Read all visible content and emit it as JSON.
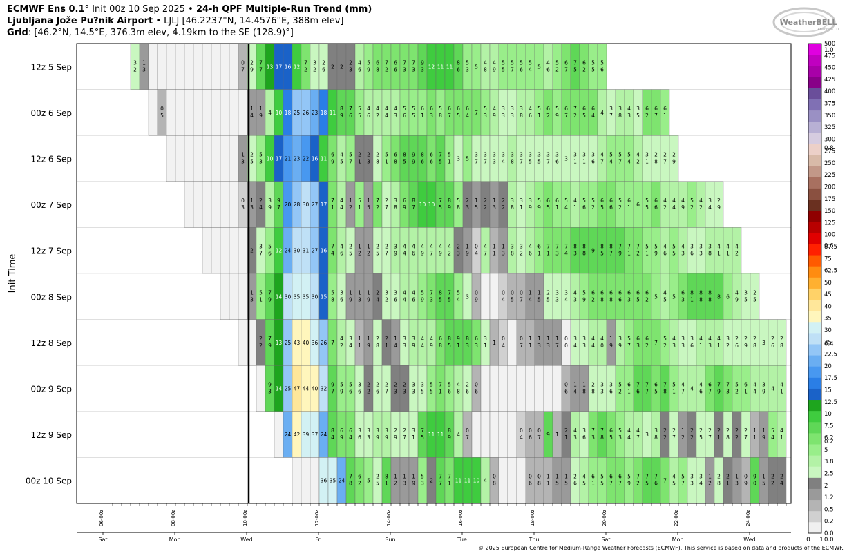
{
  "header": {
    "title_model": "ECMWF Ens 0.1",
    "title_deg": "°",
    "title_init": "Init 00z 10 Sep 2025",
    "title_sep": "•",
    "title_product": "24-h QPF Multiple-Run Trend (mm)",
    "location_name": "Ljubljana Jože Pu?nik Airport",
    "location_sep": "•",
    "location_detail": "LJLJ [46.2237°N, 14.4576°E, 388m elev]",
    "grid_label": "Grid",
    "grid_detail": ": [46.2°N, 14.5°E, 376.3m elev, 4.19km to the SE (128.9)°]"
  },
  "logo": {
    "text": "WeatherBELL",
    "subtext": "Analytics LLC"
  },
  "footer": {
    "copyright": "© 2025 European Centre for Medium-Range Weather Forecasts (ECMWF). This service is based on data and products of the ECMWF."
  },
  "colors": {
    "gray_light": "#f2f2f2",
    "now_line": "#000000"
  },
  "chart_data": {
    "type": "heatmap",
    "ylabel": "Init Time",
    "init_times": [
      "12z 5 Sep",
      "00z 6 Sep",
      "12z 6 Sep",
      "00z 7 Sep",
      "12z 7 Sep",
      "00z 8 Sep",
      "12z 8 Sep",
      "00z 9 Sep",
      "12z 9 Sep",
      "00z 10 Sep"
    ],
    "x_ticks": [
      "06-00z",
      "08-00z",
      "10-00z",
      "12-00z",
      "14-00z",
      "16-00z",
      "18-00z",
      "20-00z",
      "22-00z",
      "24-00z"
    ],
    "day_labels": [
      "Sat",
      "Mon",
      "Wed",
      "Fri",
      "Sun",
      "Tue",
      "Thu",
      "Sat",
      "Mon",
      "Wed"
    ],
    "valid_start": "05-Sep 18z",
    "step_hours": 6,
    "now_line_valid": "10-00z",
    "rows": [
      {
        "init": "12z 5 Sep",
        "start": 2,
        "values": [
          "3\n2",
          "1\n3",
          "",
          "",
          "",
          "",
          "",
          "",
          "",
          "",
          "",
          "",
          "0\n7",
          "2\n9",
          "7\n7",
          "13",
          "17",
          "16",
          "12",
          "7\n2",
          "3\n2",
          "2\n6",
          "2",
          "2",
          "2\n3",
          "4\n6",
          "5\n9",
          "6\n8",
          "7\n2",
          "6\n6",
          "7\n3",
          "7\n3",
          "9\n3",
          "12",
          "11",
          "11",
          "8\n6",
          "5\n3",
          "5",
          "4\n8",
          "4\n9",
          "5\n5",
          "5\n7",
          "5\n6",
          "5\n4",
          "5",
          "4\n6",
          "5\n2",
          "6\n7",
          "7\n5",
          "6\n2",
          "5\n5",
          "5\n6"
        ]
      },
      {
        "init": "00z 6 Sep",
        "start": 4,
        "values": [
          "",
          "0\n5",
          "",
          "",
          "",
          "",
          "",
          "",
          "",
          "",
          "",
          "1\n4",
          "1\n9",
          "4",
          "10",
          "18",
          "25",
          "26",
          "23",
          "18",
          "11",
          "8\n9",
          "7\n6",
          "5\n5",
          "4\n6",
          "4\n2",
          "4\n4",
          "4\n3",
          "5\n6",
          "5\n5",
          "6\n1",
          "6\n3",
          "5\n8",
          "6\n7",
          "6\n5",
          "6\n4",
          "7",
          "5\n3",
          "4\n9",
          "3\n3",
          "3\n3",
          "3\n8",
          "4\n6",
          "5\n1",
          "6\n2",
          "5\n9",
          "6\n7",
          "7\n2",
          "6\n5",
          "6\n4",
          "4",
          "3\n7",
          "3\n8",
          "4\n3",
          "3\n5",
          "6\n2",
          "6\n7",
          "6\n1"
        ]
      },
      {
        "init": "12z 6 Sep",
        "start": 6,
        "values": [
          "",
          "",
          "",
          "",
          "",
          "",
          "",
          "",
          "1\n3",
          "2\n5",
          "5\n3",
          "10",
          "17",
          "21",
          "23",
          "22",
          "16",
          "11",
          "6\n9",
          "4\n5",
          "5\n7",
          "2\n1",
          "2\n3",
          "2\n8",
          "5\n1",
          "6\n8",
          "8\n5",
          "9\n9",
          "8\n6",
          "6\n6",
          "7\n5",
          "5\n1",
          "3",
          "5",
          "3\n7",
          "3\n7",
          "3\n3",
          "3\n4",
          "3\n8",
          "3\n7",
          "3\n5",
          "3\n5",
          "3\n7",
          "3\n6",
          "3",
          "3\n1",
          "3\n1",
          "3\n6",
          "4\n7",
          "5\n4",
          "5\n7",
          "5\n4",
          "4\n2",
          "3\n1",
          "2\n8",
          "2\n7",
          "2\n9"
        ]
      },
      {
        "init": "00z 7 Sep",
        "start": 8,
        "values": [
          "",
          "",
          "",
          "",
          "",
          "",
          "0\n3",
          "1\n3",
          "2\n4",
          "3\n9",
          "9\n7",
          "20",
          "28",
          "30",
          "27",
          "17",
          "7\n1",
          "4\n4",
          "1\n2",
          "5\n1",
          "1\n5",
          "7\n2",
          "2\n7",
          "3\n8",
          "6\n9",
          "8\n7",
          "10",
          "10",
          "7\n5",
          "8\n9",
          "5\n8",
          "2\n3",
          "1\n5",
          "2\n2",
          "1\n3",
          "2\n2",
          "3\n8",
          "3\n1",
          "3\n9",
          "5\n9",
          "6\n5",
          "6\n1",
          "5\n4",
          "4\n1",
          "5\n6",
          "5\n2",
          "6\n5",
          "6\n6",
          "5\n2",
          "6\n1",
          "6",
          "5\n5",
          "6\n6",
          "4\n2",
          "4\n4",
          "4\n9",
          "5\n2",
          "4\n2",
          "3\n4",
          "2\n9"
        ]
      },
      {
        "init": "12z 7 Sep",
        "start": 10,
        "values": [
          "",
          "",
          "",
          "",
          "",
          "2",
          "3\n7",
          "5\n6",
          "12",
          "24",
          "30",
          "31",
          "27",
          "16",
          "7\n4",
          "4\n6",
          "2\n5",
          "1\n2",
          "1\n2",
          "2\n5",
          "2\n7",
          "3\n9",
          "4\n4",
          "4\n6",
          "4\n9",
          "4\n7",
          "4\n9",
          "4\n2",
          "2\n3",
          "1\n9",
          "0\n4",
          "4\n7",
          "1\n1",
          "1\n3",
          "3\n8",
          "3\n2",
          "4\n6",
          "6\n1",
          "7\n1",
          "7\n3",
          "7\n4",
          "8\n3",
          "8\n8",
          "9",
          "8\n5",
          "8\n7",
          "7\n9",
          "7\n1",
          "7\n2",
          "5\n1",
          "5\n9",
          "4\n6",
          "5\n5",
          "4\n3",
          "3\n6",
          "3\n3",
          "3\n8",
          "4\n1",
          "4\n1",
          "4\n2"
        ]
      },
      {
        "init": "00z 8 Sep",
        "start": 12,
        "values": [
          "",
          "",
          "",
          "1\n3",
          "5\n1",
          "7\n9",
          "14",
          "30",
          "35",
          "35",
          "30",
          "15",
          "5\n8",
          "3\n6",
          "1\n9",
          "1\n3",
          "1\n9",
          "2\n4",
          "3\n2",
          "3\n6",
          "4\n4",
          "4\n6",
          "5\n9",
          "7\n3",
          "8\n5",
          "7\n5",
          "5\n4",
          "3",
          "0\n9",
          "",
          "",
          "0\n4",
          "0\n5",
          "0\n7",
          "1\n4",
          "1\n5",
          "2\n5",
          "3\n3",
          "3\n4",
          "4\n3",
          "5\n9",
          "6\n2",
          "6\n8",
          "6\n8",
          "6\n6",
          "6\n3",
          "6\n5",
          "6\n2",
          "5",
          "4\n5",
          "5",
          "6\n3",
          "8\n1",
          "8\n8",
          "8\n8",
          "8",
          "6",
          "4\n9",
          "3\n5",
          "2\n5"
        ]
      },
      {
        "init": "12z 8 Sep",
        "start": 14,
        "values": [
          "",
          "",
          "2\n2",
          "7\n9",
          "13",
          "25",
          "43",
          "40",
          "36",
          "26",
          "7",
          "4\n2",
          "3\n4",
          "1\n1",
          "1\n9",
          "2\n8",
          "2\n1",
          "1\n4",
          "3\n3",
          "3\n9",
          "4\n4",
          "4\n9",
          "6\n8",
          "8\n5",
          "9\n1",
          "8\n3",
          "6\n3",
          "3\n1",
          "1",
          "0\n4",
          "",
          "0\n7",
          "1\n1",
          "1\n3",
          "1\n3",
          "1\n7",
          "0\n0",
          "3\n4",
          "3\n3",
          "4\n4",
          "4\n0",
          "1\n9",
          "3\n9",
          "5\n7",
          "6\n3",
          "6\n2",
          "7",
          "5\n2",
          "4\n3",
          "3\n3",
          "3\n6",
          "4\n1",
          "4\n3",
          "4\n1",
          "3\n2",
          "2\n6",
          "2\n9",
          "2\n8",
          "3",
          "2\n6",
          "2\n8",
          "2\n5"
        ]
      },
      {
        "init": "00z 9 Sep",
        "start": 16,
        "values": [
          "",
          "9\n3",
          "14",
          "25",
          "47",
          "44",
          "40",
          "32",
          "9\n7",
          "5\n9",
          "5\n6",
          "3\n6",
          "2\n2",
          "2\n6",
          "2\n7",
          "2\n3",
          "2\n3",
          "3\n3",
          "3\n5",
          "5\n5",
          "7\n1",
          "5\n6",
          "4\n8",
          "2\n6",
          "0\n6",
          "",
          "",
          "",
          "",
          "",
          "",
          "",
          "",
          "",
          "0\n6",
          "1\n4",
          "1\n8",
          "2\n8",
          "3\n3",
          "3\n6",
          "5\n2",
          "6\n1",
          "7\n6",
          "7\n7",
          "6\n5",
          "7\n8",
          "5\n1",
          "4\n7",
          "4",
          "4\n6",
          "6\n7",
          "7\n9",
          "7\n3",
          "5\n2",
          "6\n1",
          "4\n4",
          "3\n9",
          "4",
          "4\n1",
          "3\n9"
        ]
      },
      {
        "init": "12z 9 Sep",
        "start": 18,
        "values": [
          "",
          "24",
          "42",
          "39",
          "37",
          "24",
          "8\n4",
          "6\n9",
          "6\n4",
          "3\n6",
          "3\n3",
          "3\n9",
          "3\n9",
          "2\n9",
          "2\n7",
          "3\n1",
          "7\n5",
          "11",
          "11",
          "8\n9",
          "4",
          "0\n7",
          "",
          "",
          "",
          "",
          "",
          "0\n4",
          "0\n6",
          "0\n7",
          "9",
          "1",
          "2\n1",
          "4\n3",
          "3\n6",
          "7\n3",
          "7\n8",
          "6\n5",
          "5\n3",
          "4\n4",
          "4\n7",
          "3",
          "3\n8",
          "2\n2",
          "2\n7",
          "1\n2",
          "2\n2",
          "2\n5",
          "2\n7",
          "2\n1",
          "2\n8",
          "2\n2",
          "2\n7",
          "1\n1",
          "1\n9",
          "5\n4",
          "4\n1",
          "1\n8",
          "2\n5"
        ]
      },
      {
        "init": "00z 10 Sep",
        "start": 20,
        "values": [
          "",
          "",
          "",
          "36",
          "35",
          "24",
          "7\n8",
          "6\n2",
          "5",
          "2\n5",
          "8\n1",
          "1\n2",
          "1\n3",
          "1\n9",
          "5\n3",
          "2",
          "7\n7",
          "7\n1",
          "11",
          "11",
          "10",
          "4",
          "0\n8",
          "",
          "",
          "",
          "0\n6",
          "0\n8",
          "1\n1",
          "1\n5",
          "1\n5",
          "2\n6",
          "4\n5",
          "6\n1",
          "5\n5",
          "6\n7",
          "6\n7",
          "5\n9",
          "7\n2",
          "7\n5",
          "7\n6",
          "7",
          "4\n5",
          "5\n7",
          "3\n3",
          "3\n4",
          "1\n2",
          "2\n8",
          "2\n1",
          "1\n3",
          "0\n9",
          "9\n0",
          "1\n5",
          "2\n2",
          "2\n4",
          "3\n3",
          "3\n3",
          "3\n6",
          "3\n3",
          "3\n1",
          "3\n8",
          "4\n1"
        ]
      }
    ],
    "colorbar": {
      "ticks": [
        "0.0",
        "0.2",
        "0.5",
        "1.2",
        "2",
        "2.5",
        "3.8",
        "5",
        "6.2",
        "7.5",
        "10",
        "12.5",
        "15",
        "17.5",
        "20",
        "22.5",
        "25",
        "30",
        "35",
        "40",
        "45",
        "50",
        "62.5",
        "75",
        "87.5",
        "100",
        "125",
        "150",
        "175",
        "200",
        "225",
        "250",
        "275",
        "300",
        "325",
        "350",
        "375",
        "400",
        "425",
        "450",
        "475",
        "500"
      ],
      "inch_ticks": [
        "0.0",
        "0.2",
        "0.4",
        "0.6",
        "0.8",
        "1.0"
      ],
      "x_labels": [
        "0",
        "1"
      ],
      "colors": [
        "#f0f0f0",
        "#d0d0d0",
        "#b4b4b4",
        "#9a9a9a",
        "#808080",
        "#c9f7c0",
        "#b3f2a6",
        "#99ee8a",
        "#7ee46f",
        "#5fd757",
        "#3fcc3f",
        "#1ea51e",
        "#1a62c8",
        "#2a7ee6",
        "#4898f0",
        "#6aaef2",
        "#93c6f6",
        "#bfe0f6",
        "#d2f1f4",
        "#fff6bc",
        "#ffe79a",
        "#ffd268",
        "#ffb030",
        "#ff8c10",
        "#ff5a00",
        "#ff2000",
        "#e00000",
        "#b80000",
        "#900000",
        "#6a3020",
        "#8a5040",
        "#a87060",
        "#c29888",
        "#d8baa8",
        "#ecd0c8",
        "#d6cce0",
        "#b8b0d4",
        "#9a90c4",
        "#8070b4",
        "#6a4e9a",
        "#880088",
        "#a800a8",
        "#c000c0",
        "#e000e0"
      ]
    }
  }
}
